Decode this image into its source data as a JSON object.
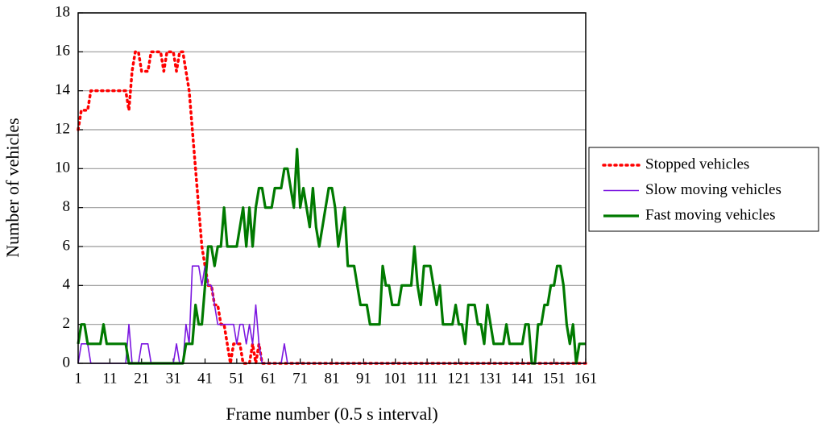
{
  "chart_data": {
    "type": "line",
    "xlabel": "Frame number (0.5 s interval)",
    "ylabel": "Number of vehicles",
    "x": [
      1,
      2,
      3,
      4,
      5,
      6,
      7,
      8,
      9,
      10,
      11,
      12,
      13,
      14,
      15,
      16,
      17,
      18,
      19,
      20,
      21,
      22,
      23,
      24,
      25,
      26,
      27,
      28,
      29,
      30,
      31,
      32,
      33,
      34,
      35,
      36,
      37,
      38,
      39,
      40,
      41,
      42,
      43,
      44,
      45,
      46,
      47,
      48,
      49,
      50,
      51,
      52,
      53,
      54,
      55,
      56,
      57,
      58,
      59,
      60,
      61,
      62,
      63,
      64,
      65,
      66,
      67,
      68,
      69,
      70,
      71,
      72,
      73,
      74,
      75,
      76,
      77,
      78,
      79,
      80,
      81,
      82,
      83,
      84,
      85,
      86,
      87,
      88,
      89,
      90,
      91,
      92,
      93,
      94,
      95,
      96,
      97,
      98,
      99,
      100,
      101,
      102,
      103,
      104,
      105,
      106,
      107,
      108,
      109,
      110,
      111,
      112,
      113,
      114,
      115,
      116,
      117,
      118,
      119,
      120,
      121,
      122,
      123,
      124,
      125,
      126,
      127,
      128,
      129,
      130,
      131,
      132,
      133,
      134,
      135,
      136,
      137,
      138,
      139,
      140,
      141,
      142,
      143,
      144,
      145,
      146,
      147,
      148,
      149,
      150,
      151,
      152,
      153,
      154,
      155,
      156,
      157,
      158,
      159,
      160,
      161
    ],
    "series": [
      {
        "name": "Stopped vehicles",
        "color": "#ff0000",
        "style": "dotted",
        "width": 3.5,
        "values": [
          12,
          13,
          13,
          13,
          14,
          14,
          14,
          14,
          14,
          14,
          14,
          14,
          14,
          14,
          14,
          14,
          13,
          15,
          16,
          16,
          15,
          15,
          15,
          16,
          16,
          16,
          16,
          15,
          16,
          16,
          16,
          15,
          16,
          16,
          15,
          14,
          12,
          10,
          8,
          6,
          5,
          4,
          4,
          3,
          3,
          2,
          2,
          1,
          0,
          1,
          1,
          1,
          0,
          0,
          0,
          1,
          0,
          1,
          0,
          0,
          0,
          0,
          0,
          0,
          0,
          0,
          0,
          0,
          0,
          0,
          0,
          0,
          0,
          0,
          0,
          0,
          0,
          0,
          0,
          0,
          0,
          0,
          0,
          0,
          0,
          0,
          0,
          0,
          0,
          0,
          0,
          0,
          0,
          0,
          0,
          0,
          0,
          0,
          0,
          0,
          0,
          0,
          0,
          0,
          0,
          0,
          0,
          0,
          0,
          0,
          0,
          0,
          0,
          0,
          0,
          0,
          0,
          0,
          0,
          0,
          0,
          0,
          0,
          0,
          0,
          0,
          0,
          0,
          0,
          0,
          0,
          0,
          0,
          0,
          0,
          0,
          0,
          0,
          0,
          0,
          0,
          0,
          0,
          0,
          0,
          0,
          0,
          0,
          0,
          0,
          0,
          0,
          0,
          0,
          0,
          0,
          0,
          0,
          0,
          0,
          0
        ]
      },
      {
        "name": "Slow moving vehicles",
        "color": "#7b16e0",
        "style": "solid",
        "width": 1.6,
        "values": [
          0,
          1,
          1,
          1,
          0,
          0,
          0,
          0,
          0,
          0,
          0,
          0,
          0,
          0,
          0,
          0,
          2,
          0,
          0,
          0,
          1,
          1,
          1,
          0,
          0,
          0,
          0,
          0,
          0,
          0,
          0,
          1,
          0,
          0,
          2,
          1,
          5,
          5,
          5,
          4,
          5,
          4,
          4,
          3,
          2,
          2,
          2,
          2,
          2,
          2,
          1,
          2,
          2,
          1,
          2,
          1,
          3,
          1,
          0,
          0,
          0,
          0,
          0,
          0,
          0,
          1,
          0,
          0,
          0,
          0,
          0,
          0,
          0,
          0,
          0,
          0,
          0,
          0,
          0,
          0,
          0,
          0,
          0,
          0,
          0,
          0,
          0,
          0,
          0,
          0,
          0,
          0,
          0,
          0,
          0,
          0,
          0,
          0,
          0,
          0,
          0,
          0,
          0,
          0,
          0,
          0,
          0,
          0,
          0,
          0,
          0,
          0,
          0,
          0,
          0,
          0,
          0,
          0,
          0,
          0,
          0,
          0,
          0,
          0,
          0,
          0,
          0,
          0,
          0,
          0,
          0,
          0,
          0,
          0,
          0,
          0,
          0,
          0,
          0,
          0,
          0,
          0,
          0,
          0,
          0,
          0,
          0,
          0,
          0,
          0,
          0,
          0,
          0,
          0,
          0,
          0,
          0,
          0,
          0,
          0,
          0
        ]
      },
      {
        "name": "Fast moving vehicles",
        "color": "#007a00",
        "style": "solid",
        "width": 3.2,
        "values": [
          1,
          2,
          2,
          1,
          1,
          1,
          1,
          1,
          2,
          1,
          1,
          1,
          1,
          1,
          1,
          1,
          0,
          0,
          0,
          0,
          0,
          0,
          0,
          0,
          0,
          0,
          0,
          0,
          0,
          0,
          0,
          0,
          0,
          0,
          1,
          1,
          1,
          3,
          2,
          2,
          4,
          6,
          6,
          5,
          6,
          6,
          8,
          6,
          6,
          6,
          6,
          7,
          8,
          6,
          8,
          6,
          8,
          9,
          9,
          8,
          8,
          8,
          9,
          9,
          9,
          10,
          10,
          9,
          8,
          11,
          8,
          9,
          8,
          7,
          9,
          7,
          6,
          7,
          8,
          9,
          9,
          8,
          6,
          7,
          8,
          5,
          5,
          5,
          4,
          3,
          3,
          3,
          2,
          2,
          2,
          2,
          5,
          4,
          4,
          3,
          3,
          3,
          4,
          4,
          4,
          4,
          6,
          4,
          3,
          5,
          5,
          5,
          4,
          3,
          4,
          2,
          2,
          2,
          2,
          3,
          2,
          2,
          1,
          3,
          3,
          3,
          2,
          2,
          1,
          3,
          2,
          1,
          1,
          1,
          1,
          2,
          1,
          1,
          1,
          1,
          1,
          2,
          2,
          0,
          0,
          2,
          2,
          3,
          3,
          4,
          4,
          5,
          5,
          4,
          2,
          1,
          2,
          0,
          1,
          1,
          1
        ]
      }
    ],
    "xlim": [
      1,
      161
    ],
    "xticks": [
      1,
      11,
      21,
      31,
      41,
      51,
      61,
      71,
      81,
      91,
      101,
      111,
      121,
      131,
      141,
      151,
      161
    ],
    "ylim": [
      0,
      18
    ],
    "yticks": [
      0,
      2,
      4,
      6,
      8,
      10,
      12,
      14,
      16,
      18
    ],
    "grid": true,
    "legend": "right"
  }
}
